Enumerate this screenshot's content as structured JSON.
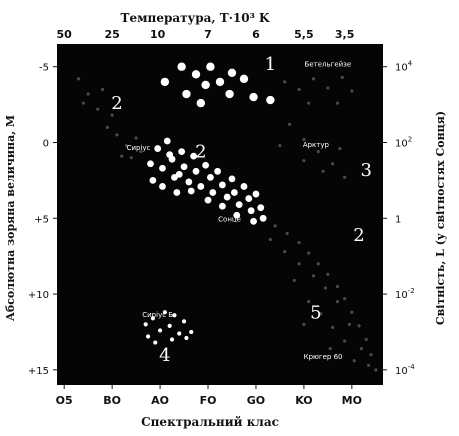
{
  "chart_data": {
    "type": "scatter",
    "title_top": "Температура, T·10³ K",
    "xlabel": "Спектральний клас",
    "ylabel_left": "Абсолютна зоряна величина, M",
    "ylabel_right": "Світність, L (у світностях Сонця)",
    "x_categories": [
      "O5",
      "BO",
      "AO",
      "FO",
      "GO",
      "KO",
      "MO"
    ],
    "temperature_ticks": [
      {
        "label": "50",
        "x": 0
      },
      {
        "label": "25",
        "x": 1
      },
      {
        "label": "10",
        "x": 1.95
      },
      {
        "label": "7",
        "x": 3
      },
      {
        "label": "6",
        "x": 4
      },
      {
        "label": "5,5",
        "x": 5
      },
      {
        "label": "3,5",
        "x": 5.85
      }
    ],
    "ylim": [
      16,
      -6.5
    ],
    "magnitude_ticks": [
      {
        "label": "-5",
        "value": -5
      },
      {
        "label": "0",
        "value": 0
      },
      {
        "label": "+5",
        "value": 5
      },
      {
        "label": "+10",
        "value": 10
      },
      {
        "label": "+15",
        "value": 15
      }
    ],
    "luminosity_ticks": [
      {
        "base": "10",
        "exp": "4",
        "value": -5
      },
      {
        "base": "10",
        "exp": "2",
        "value": 0
      },
      {
        "base": "1",
        "exp": "",
        "value": 5
      },
      {
        "base": "10",
        "exp": "-2",
        "value": 10
      },
      {
        "base": "10",
        "exp": "-4",
        "value": 15
      }
    ],
    "star_labels": [
      {
        "name": "Бетельгейзе",
        "x": 5.5,
        "y": -5
      },
      {
        "name": "Сиріус",
        "x": 1.55,
        "y": 0.5
      },
      {
        "name": "Арктур",
        "x": 5.25,
        "y": 0.3
      },
      {
        "name": "Сонце",
        "x": 3.45,
        "y": 5.2
      },
      {
        "name": "Сиріус Б",
        "x": 1.95,
        "y": 11.5
      },
      {
        "name": "Крюгер 60",
        "x": 5.4,
        "y": 14.3
      }
    ],
    "group_labels": [
      {
        "label": "1",
        "x": 4.3,
        "y": -4.8
      },
      {
        "label": "2",
        "x": 1.1,
        "y": -2.2
      },
      {
        "label": "2",
        "x": 2.85,
        "y": 1.0
      },
      {
        "label": "3",
        "x": 6.3,
        "y": 2.2
      },
      {
        "label": "2",
        "x": 6.15,
        "y": 6.5
      },
      {
        "label": "5",
        "x": 5.25,
        "y": 11.6
      },
      {
        "label": "4",
        "x": 2.1,
        "y": 14.4
      }
    ],
    "series": [
      {
        "name": "1",
        "marker": "large-white",
        "points": [
          [
            2.1,
            -4.0
          ],
          [
            2.45,
            -5.0
          ],
          [
            2.55,
            -3.2
          ],
          [
            2.75,
            -4.5
          ],
          [
            2.95,
            -3.8
          ],
          [
            3.05,
            -5.0
          ],
          [
            3.25,
            -4.0
          ],
          [
            3.5,
            -4.6
          ],
          [
            3.45,
            -3.2
          ],
          [
            3.75,
            -4.2
          ],
          [
            3.95,
            -3.0
          ],
          [
            4.3,
            -2.8
          ],
          [
            2.85,
            -2.6
          ]
        ]
      },
      {
        "name": "2",
        "marker": "white",
        "points": [
          [
            1.8,
            1.4
          ],
          [
            1.95,
            0.4
          ],
          [
            2.05,
            1.7
          ],
          [
            2.15,
            -0.1
          ],
          [
            2.25,
            1.1
          ],
          [
            2.3,
            2.3
          ],
          [
            2.45,
            0.6
          ],
          [
            2.5,
            1.6
          ],
          [
            2.6,
            2.6
          ],
          [
            2.7,
            0.9
          ],
          [
            2.75,
            1.9
          ],
          [
            2.85,
            2.9
          ],
          [
            2.95,
            1.5
          ],
          [
            3.05,
            2.3
          ],
          [
            3.1,
            3.3
          ],
          [
            3.2,
            1.9
          ],
          [
            3.3,
            2.8
          ],
          [
            3.4,
            3.6
          ],
          [
            3.5,
            2.4
          ],
          [
            3.55,
            3.3
          ],
          [
            3.65,
            4.1
          ],
          [
            3.75,
            2.9
          ],
          [
            3.85,
            3.7
          ],
          [
            3.9,
            4.5
          ],
          [
            4.0,
            3.4
          ],
          [
            4.1,
            4.3
          ],
          [
            3.0,
            3.8
          ],
          [
            2.4,
            2.1
          ],
          [
            2.2,
            0.8
          ],
          [
            1.85,
            2.5
          ],
          [
            3.6,
            4.8
          ],
          [
            3.3,
            4.2
          ],
          [
            2.65,
            3.2
          ],
          [
            2.05,
            2.9
          ],
          [
            3.95,
            5.2
          ],
          [
            4.15,
            5.0
          ],
          [
            2.35,
            3.3
          ]
        ]
      },
      {
        "name": "4",
        "marker": "small-white",
        "points": [
          [
            1.7,
            12.0
          ],
          [
            1.75,
            12.8
          ],
          [
            1.85,
            11.6
          ],
          [
            2.0,
            12.4
          ],
          [
            2.1,
            11.2
          ],
          [
            2.2,
            12.1
          ],
          [
            2.3,
            11.4
          ],
          [
            2.4,
            12.6
          ],
          [
            2.5,
            11.8
          ],
          [
            2.65,
            12.5
          ],
          [
            1.9,
            13.2
          ],
          [
            2.25,
            13.0
          ],
          [
            2.55,
            12.9
          ]
        ]
      },
      {
        "name": "",
        "marker": "faint",
        "points": [
          [
            0.3,
            -4.2
          ],
          [
            0.5,
            -3.2
          ],
          [
            0.7,
            -2.2
          ],
          [
            0.9,
            -1.0
          ],
          [
            1.1,
            -0.5
          ],
          [
            1.3,
            0.2
          ],
          [
            1.5,
            -0.3
          ],
          [
            0.4,
            -2.6
          ],
          [
            0.8,
            -3.5
          ],
          [
            1.0,
            -1.8
          ],
          [
            1.2,
            0.9
          ],
          [
            1.4,
            1.0
          ],
          [
            1.6,
            0.6
          ],
          [
            4.6,
            -4.0
          ],
          [
            4.9,
            -3.5
          ],
          [
            5.2,
            -4.2
          ],
          [
            5.5,
            -3.6
          ],
          [
            5.8,
            -4.3
          ],
          [
            6.0,
            -3.4
          ],
          [
            5.1,
            -2.6
          ],
          [
            5.7,
            -2.6
          ],
          [
            4.7,
            -1.2
          ],
          [
            5.0,
            -0.2
          ],
          [
            5.3,
            0.6
          ],
          [
            5.6,
            1.4
          ],
          [
            5.85,
            2.3
          ],
          [
            5.4,
            1.9
          ],
          [
            5.0,
            1.2
          ],
          [
            5.75,
            0.4
          ],
          [
            4.5,
            0.2
          ],
          [
            4.4,
            5.5
          ],
          [
            4.65,
            6.0
          ],
          [
            4.9,
            6.6
          ],
          [
            5.1,
            7.3
          ],
          [
            5.3,
            8.0
          ],
          [
            5.5,
            8.7
          ],
          [
            5.7,
            9.5
          ],
          [
            5.85,
            10.3
          ],
          [
            6.0,
            11.2
          ],
          [
            6.15,
            12.1
          ],
          [
            6.3,
            13.0
          ],
          [
            6.4,
            14.0
          ],
          [
            6.5,
            15.0
          ],
          [
            4.6,
            7.2
          ],
          [
            4.9,
            8.0
          ],
          [
            5.2,
            8.8
          ],
          [
            5.45,
            9.6
          ],
          [
            5.7,
            10.5
          ],
          [
            5.95,
            12.0
          ],
          [
            6.2,
            13.6
          ],
          [
            5.1,
            10.5
          ],
          [
            5.35,
            11.3
          ],
          [
            5.6,
            12.2
          ],
          [
            5.85,
            13.1
          ],
          [
            6.05,
            14.4
          ],
          [
            4.3,
            6.4
          ],
          [
            4.8,
            9.1
          ],
          [
            5.55,
            13.6
          ],
          [
            6.35,
            14.7
          ],
          [
            5.0,
            12.0
          ]
        ]
      }
    ]
  }
}
